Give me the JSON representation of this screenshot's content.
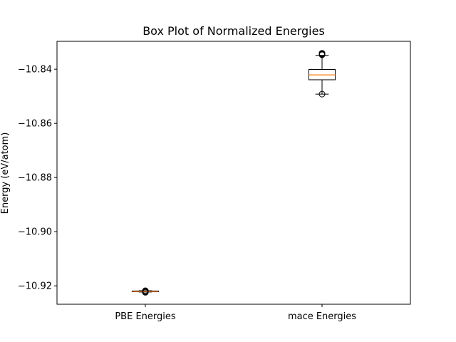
{
  "chart_data": {
    "type": "box",
    "title": "Box Plot of Normalized Energies",
    "xlabel": "",
    "ylabel": "Energy (eV/atom)",
    "ylim": [
      -10.9268,
      -10.8297
    ],
    "yticks": [
      -10.84,
      -10.86,
      -10.88,
      -10.9,
      -10.92
    ],
    "ytick_labels": [
      "−10.84",
      "−10.86",
      "−10.88",
      "−10.90",
      "−10.92"
    ],
    "categories": [
      "PBE Energies",
      "mace Energies"
    ],
    "boxes": [
      {
        "name": "PBE Energies",
        "whisker_low": -10.9223,
        "q1": -10.9222,
        "median": -10.9221,
        "q3": -10.9219,
        "whisker_high": -10.9218,
        "outliers": [
          -10.9224,
          -10.9223,
          -10.9221,
          -10.922,
          -10.9219,
          -10.9218
        ]
      },
      {
        "name": "mace Energies",
        "whisker_low": -10.8492,
        "q1": -10.8439,
        "median": -10.8421,
        "q3": -10.8401,
        "whisker_high": -10.8349,
        "outliers": [
          -10.8492,
          -10.8347,
          -10.8345,
          -10.8343,
          -10.8341
        ]
      }
    ],
    "colors": {
      "median": "#ff7f0e",
      "box": "#000000",
      "axes": "#000000"
    },
    "grid": false
  }
}
